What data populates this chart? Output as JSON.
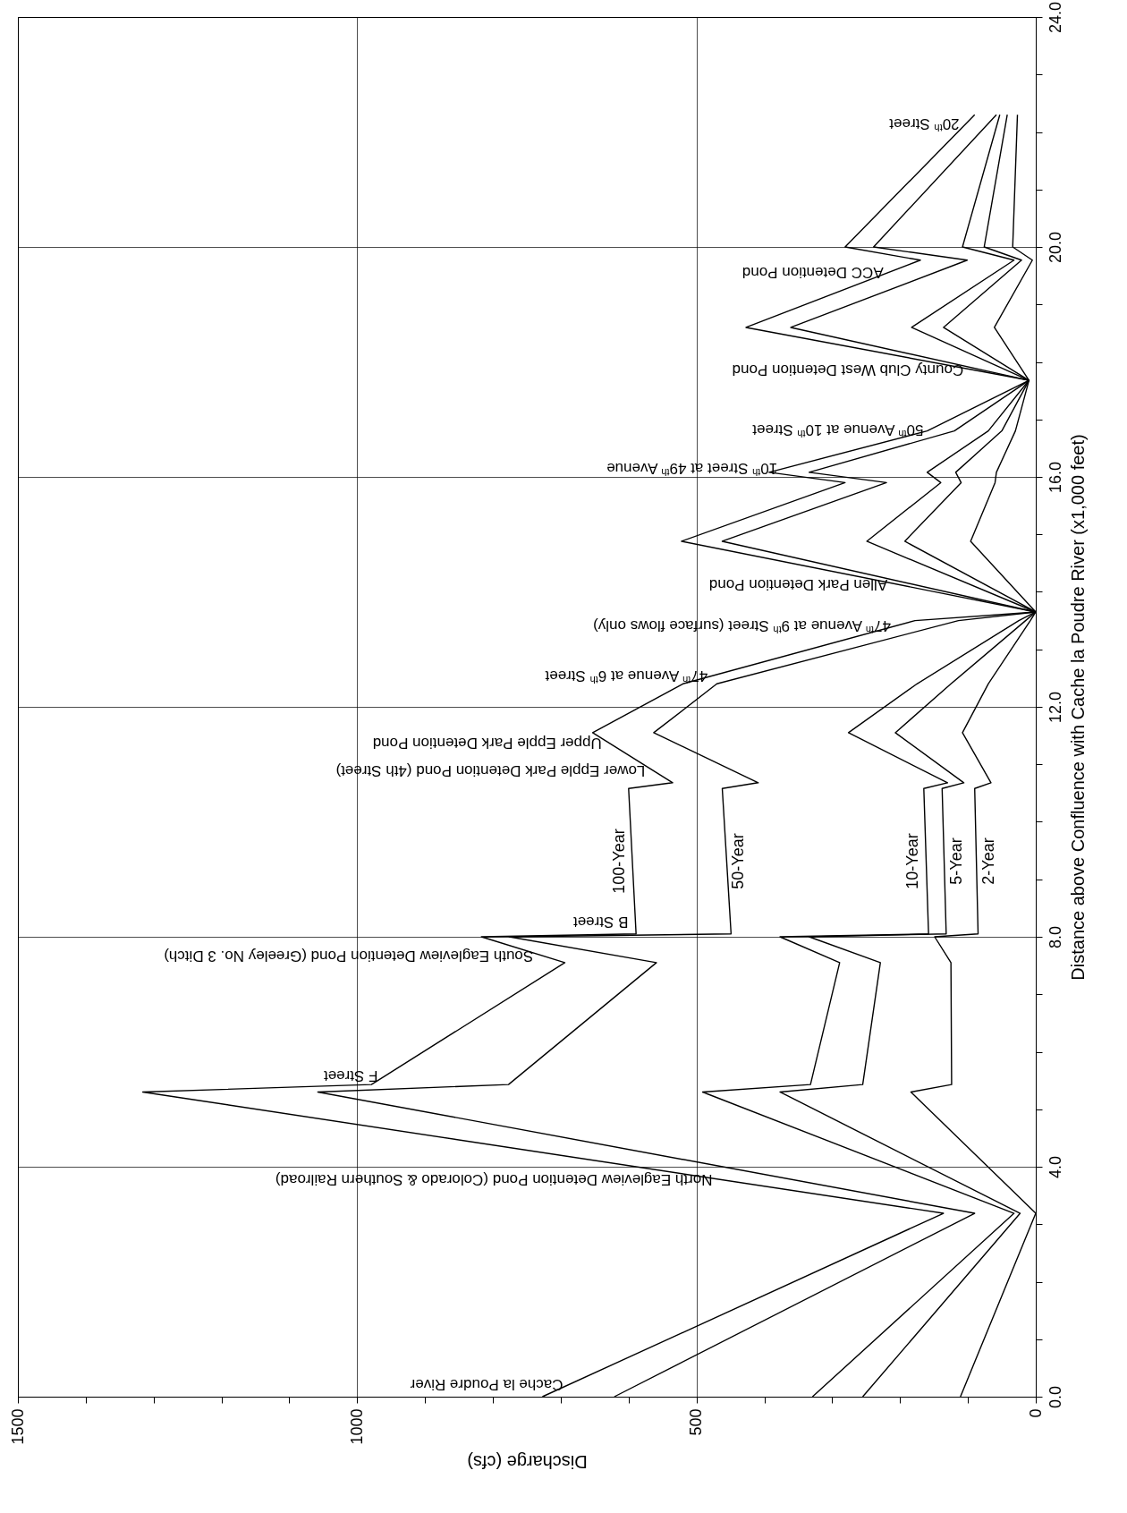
{
  "chart_data": {
    "type": "line",
    "xlabel": "Discharge (cfs)",
    "ylabel": "Distance above Confluence with Cache la Poudre River (x1,000 feet)",
    "xlim": [
      1500,
      0
    ],
    "ylim": [
      0,
      24
    ],
    "xticks": [
      0,
      {
        "value": 100,
        "label": null
      },
      {
        "value": 200,
        "label": null
      },
      {
        "value": 300,
        "label": null
      },
      {
        "value": 400,
        "label": null
      },
      500,
      {
        "value": 600,
        "label": null
      },
      {
        "value": 700,
        "label": null
      },
      {
        "value": 800,
        "label": null
      },
      {
        "value": 900,
        "label": null
      },
      1000,
      {
        "value": 1100,
        "label": null
      },
      {
        "value": 1200,
        "label": null
      },
      {
        "value": 1300,
        "label": null
      },
      {
        "value": 1400,
        "label": null
      },
      1500
    ],
    "yticks": [
      {
        "value": 0,
        "label": "0.0"
      },
      {
        "value": 1,
        "label": null
      },
      {
        "value": 2,
        "label": null
      },
      {
        "value": 3,
        "label": null
      },
      {
        "value": 4,
        "label": "4.0"
      },
      {
        "value": 5,
        "label": null
      },
      {
        "value": 6,
        "label": null
      },
      {
        "value": 7,
        "label": null
      },
      {
        "value": 8,
        "label": "8.0"
      },
      {
        "value": 9,
        "label": null
      },
      {
        "value": 10,
        "label": null
      },
      {
        "value": 11,
        "label": null
      },
      {
        "value": 12,
        "label": "12.0"
      },
      {
        "value": 13,
        "label": null
      },
      {
        "value": 14,
        "label": null
      },
      {
        "value": 15,
        "label": null
      },
      {
        "value": 16,
        "label": "16.0"
      },
      {
        "value": 17,
        "label": null
      },
      {
        "value": 18,
        "label": null
      },
      {
        "value": 19,
        "label": null
      },
      {
        "value": 20,
        "label": "20.0"
      },
      {
        "value": 21,
        "label": null
      },
      {
        "value": 22,
        "label": null
      },
      {
        "value": 23,
        "label": null
      },
      {
        "value": 24,
        "label": "24.0"
      }
    ],
    "grid": true,
    "series": [
      {
        "name": "100-Year",
        "color": "#000000",
        "x": [
          727,
          136,
          1316,
          979,
          694,
          817,
          589,
          600,
          535,
          653,
          520,
          178,
          0,
          522,
          281,
          393,
          160,
          10,
          427,
          170,
          281,
          90
        ],
        "values": [
          0,
          3.19,
          5.3,
          5.43,
          7.55,
          8.0,
          8.05,
          10.58,
          10.68,
          11.55,
          12.4,
          13.5,
          13.65,
          14.88,
          15.9,
          16.08,
          16.8,
          17.68,
          18.6,
          19.77,
          20.0,
          22.3
        ]
      },
      {
        "name": "50-Year",
        "color": "#000000",
        "x": [
          621,
          90,
          1058,
          777,
          559,
          776,
          449,
          462,
          409,
          563,
          470,
          114,
          0,
          462,
          220,
          334,
          120,
          10,
          361,
          101,
          239,
          58
        ],
        "values": [
          0,
          3.19,
          5.3,
          5.43,
          7.55,
          8.0,
          8.05,
          10.58,
          10.68,
          11.55,
          12.4,
          13.5,
          13.65,
          14.88,
          15.9,
          16.08,
          16.8,
          17.68,
          18.6,
          19.77,
          20.0,
          22.3
        ]
      },
      {
        "name": "10-Year",
        "color": "#000000",
        "x": [
          329,
          32,
          491,
          332,
          289,
          377,
          158,
          165,
          130,
          276,
          175,
          25,
          0,
          249,
          140,
          160,
          70,
          10,
          183,
          32,
          108,
          53
        ],
        "values": [
          0,
          3.19,
          5.3,
          5.43,
          7.55,
          8.0,
          8.05,
          10.58,
          10.68,
          11.55,
          12.4,
          13.5,
          13.65,
          14.88,
          15.9,
          16.08,
          16.8,
          17.68,
          18.6,
          19.77,
          20.0,
          22.3
        ]
      },
      {
        "name": "5-Year",
        "color": "#000000",
        "x": [
          255,
          23,
          377,
          255,
          229,
          334,
          132,
          138,
          106,
          207,
          125,
          15,
          0,
          193,
          110,
          118,
          50,
          10,
          136,
          21,
          76,
          42
        ],
        "values": [
          0,
          3.19,
          5.3,
          5.43,
          7.55,
          8.0,
          8.05,
          10.58,
          10.68,
          11.55,
          12.4,
          13.5,
          13.65,
          14.88,
          15.9,
          16.08,
          16.8,
          17.68,
          18.6,
          19.77,
          20.0,
          22.3
        ]
      },
      {
        "name": "2-Year",
        "color": "#000000",
        "x": [
          111,
          0,
          184,
          124,
          125,
          149,
          85,
          90,
          66,
          108,
          70,
          8,
          0,
          96,
          60,
          58,
          30,
          10,
          61,
          5,
          34,
          27
        ],
        "values": [
          0,
          3.19,
          5.3,
          5.43,
          7.55,
          8.0,
          8.05,
          10.58,
          10.68,
          11.55,
          12.4,
          13.5,
          13.65,
          14.88,
          15.9,
          16.08,
          16.8,
          17.68,
          18.6,
          19.77,
          20.0,
          22.3
        ]
      }
    ],
    "annotations": [
      {
        "text": "Cache la Poudre River",
        "x": 686,
        "y": 0.22
      },
      {
        "text": "North Eagleview Detention Pond  (Colorado & Southern Railroad)",
        "x": 466,
        "y": 3.78
      },
      {
        "text": "F Street",
        "x": 959,
        "y": 5.58
      },
      {
        "text": "South Eagleview Detention Pond (Greeley No. 3 Ditch)",
        "x": 730,
        "y": 7.68
      },
      {
        "text": "B Street",
        "x": 590,
        "y": 8.27
      },
      {
        "text": "Lower Epple Park Detention Pond (4th Street)",
        "x": 565,
        "y": 10.9
      },
      {
        "text": "Upper Epple Park Detention Pond",
        "x": 629,
        "y": 11.37
      },
      {
        "text": "47$^{th}$ Avenue at 6$^{th}$ Street",
        "x": 473,
        "y": 12.55
      },
      {
        "text": "47$^{th}$ Avenue at 9$^{th}$ Street (surface flows only)",
        "x": 203,
        "y": 13.42
      },
      {
        "text": "Allen Park Detention Pond",
        "x": 208,
        "y": 14.14
      },
      {
        "text": "10$^{th}$ Street at 49$^{th}$ Avenue",
        "x": 370,
        "y": 16.15
      },
      {
        "text": "50$^{th}$ Avenue at 10$^{th}$ Street",
        "x": 155,
        "y": 16.83
      },
      {
        "text": "County Club West Detention Pond",
        "x": 96,
        "y": 17.87
      },
      {
        "text": "ACC Detention Pond",
        "x": 214,
        "y": 19.57
      },
      {
        "text": "20$^{th}$ Street",
        "x": 102,
        "y": 22.15
      }
    ]
  }
}
